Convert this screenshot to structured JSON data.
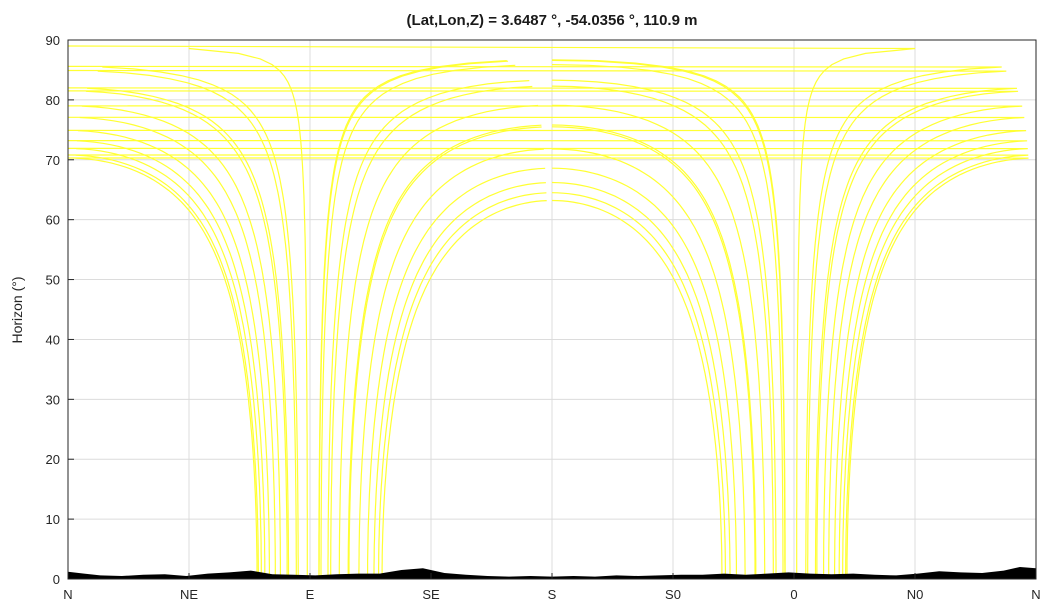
{
  "chart_data": {
    "type": "line",
    "title": "(Lat,Lon,Z) = 3.6487 °, -54.0356 °, 110.9 m",
    "xlabel": "",
    "ylabel": "Horizon (°)",
    "xlim": [
      0,
      360
    ],
    "ylim": [
      0,
      90
    ],
    "x_ticks": [
      {
        "value": 0,
        "label": "N"
      },
      {
        "value": 45,
        "label": "NE"
      },
      {
        "value": 90,
        "label": "E"
      },
      {
        "value": 135,
        "label": "SE"
      },
      {
        "value": 180,
        "label": "S"
      },
      {
        "value": 225,
        "label": "S0"
      },
      {
        "value": 270,
        "label": "0"
      },
      {
        "value": 315,
        "label": "N0"
      },
      {
        "value": 360,
        "label": "N"
      }
    ],
    "y_ticks": [
      0,
      10,
      20,
      30,
      40,
      50,
      60,
      70,
      80,
      90
    ],
    "grid": true,
    "legend": "none",
    "colors": {
      "sun_paths": "#ffff33",
      "terrain": "#000000",
      "grid": "#dcdcdc"
    },
    "sun_path_max_elevations": [
      {
        "value": 63.2,
        "side": "south"
      },
      {
        "value": 64.5,
        "side": "south"
      },
      {
        "value": 66.2,
        "side": "south"
      },
      {
        "value": 68.6,
        "side": "south"
      },
      {
        "value": 71.8,
        "side": "south"
      },
      {
        "value": 75.5,
        "side": "south"
      },
      {
        "value": 75.8,
        "side": "south"
      },
      {
        "value": 79.1,
        "side": "south"
      },
      {
        "value": 82.3,
        "side": "south"
      },
      {
        "value": 83.3,
        "side": "south"
      },
      {
        "value": 85.9,
        "side": "south"
      },
      {
        "value": 86.6,
        "side": "south"
      },
      {
        "value": 86.7,
        "side": "south"
      },
      {
        "value": 70.3,
        "side": "north"
      },
      {
        "value": 70.8,
        "side": "north"
      },
      {
        "value": 71.9,
        "side": "north"
      },
      {
        "value": 73.2,
        "side": "north"
      },
      {
        "value": 74.9,
        "side": "north"
      },
      {
        "value": 77.1,
        "side": "north"
      },
      {
        "value": 79.0,
        "side": "north"
      },
      {
        "value": 81.5,
        "side": "north"
      },
      {
        "value": 82.0,
        "side": "north"
      },
      {
        "value": 84.9,
        "side": "north"
      },
      {
        "value": 85.6,
        "side": "north"
      },
      {
        "value": 89.0,
        "side": "north"
      }
    ],
    "terrain_horizon": [
      [
        0,
        1.2
      ],
      [
        6,
        0.9
      ],
      [
        12,
        0.6
      ],
      [
        20,
        0.5
      ],
      [
        28,
        0.7
      ],
      [
        36,
        0.8
      ],
      [
        44,
        0.5
      ],
      [
        52,
        0.9
      ],
      [
        60,
        1.1
      ],
      [
        68,
        1.4
      ],
      [
        76,
        0.8
      ],
      [
        84,
        0.7
      ],
      [
        92,
        0.6
      ],
      [
        100,
        0.8
      ],
      [
        108,
        0.9
      ],
      [
        116,
        0.9
      ],
      [
        124,
        1.5
      ],
      [
        132,
        1.8
      ],
      [
        140,
        1.0
      ],
      [
        148,
        0.7
      ],
      [
        156,
        0.5
      ],
      [
        164,
        0.4
      ],
      [
        172,
        0.5
      ],
      [
        180,
        0.4
      ],
      [
        188,
        0.5
      ],
      [
        196,
        0.4
      ],
      [
        204,
        0.6
      ],
      [
        212,
        0.5
      ],
      [
        220,
        0.6
      ],
      [
        228,
        0.7
      ],
      [
        236,
        0.7
      ],
      [
        244,
        0.9
      ],
      [
        252,
        0.7
      ],
      [
        260,
        0.9
      ],
      [
        268,
        1.1
      ],
      [
        276,
        0.9
      ],
      [
        284,
        0.8
      ],
      [
        292,
        0.9
      ],
      [
        300,
        0.7
      ],
      [
        308,
        0.6
      ],
      [
        316,
        0.9
      ],
      [
        324,
        1.3
      ],
      [
        332,
        1.1
      ],
      [
        340,
        1.0
      ],
      [
        348,
        1.4
      ],
      [
        354,
        2.0
      ],
      [
        360,
        1.8
      ]
    ]
  }
}
